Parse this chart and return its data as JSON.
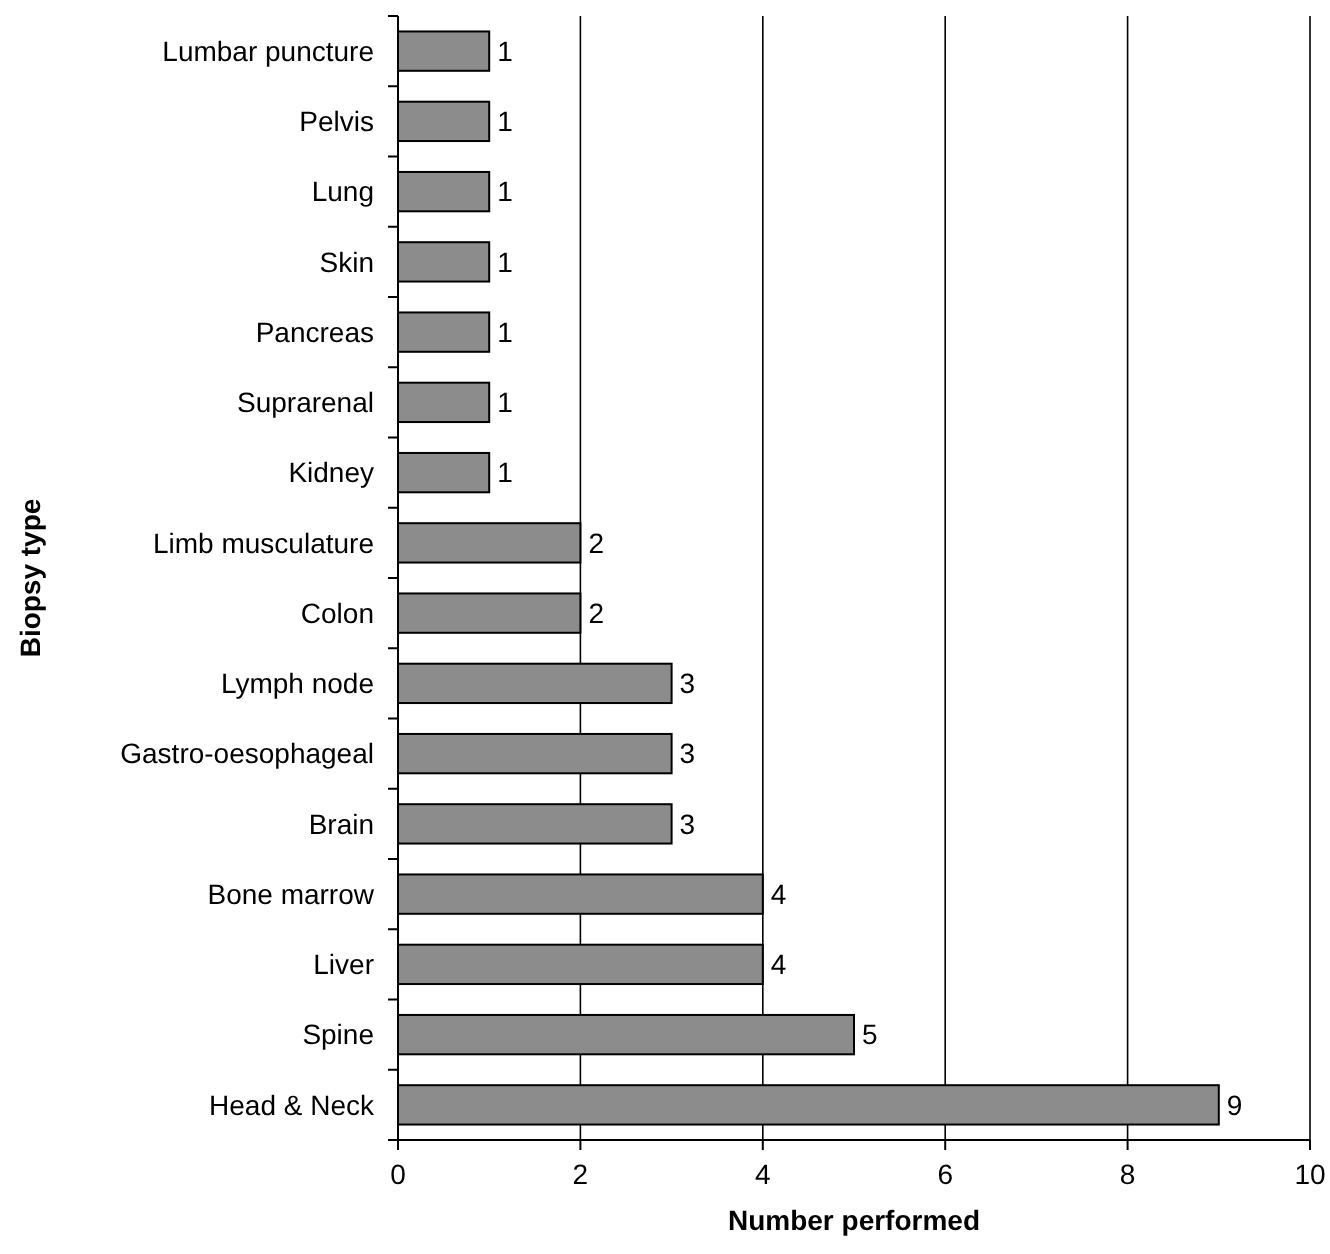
{
  "chart_data": {
    "type": "bar",
    "orientation": "horizontal",
    "xlabel": "Number performed",
    "ylabel": "Biopsy type",
    "categories": [
      "Lumbar puncture",
      "Pelvis",
      "Lung",
      "Skin",
      "Pancreas",
      "Suprarenal",
      "Kidney",
      "Limb musculature",
      "Colon",
      "Lymph node",
      "Gastro-oesophageal",
      "Brain",
      "Bone marrow",
      "Liver",
      "Spine",
      "Head & Neck"
    ],
    "values": [
      1,
      1,
      1,
      1,
      1,
      1,
      1,
      2,
      2,
      3,
      3,
      3,
      4,
      4,
      5,
      9
    ],
    "color": "#8c8c8c",
    "xlim": [
      0,
      10
    ],
    "xticks": [
      0,
      2,
      4,
      6,
      8,
      10
    ],
    "grid": "x",
    "data_labels": true
  }
}
